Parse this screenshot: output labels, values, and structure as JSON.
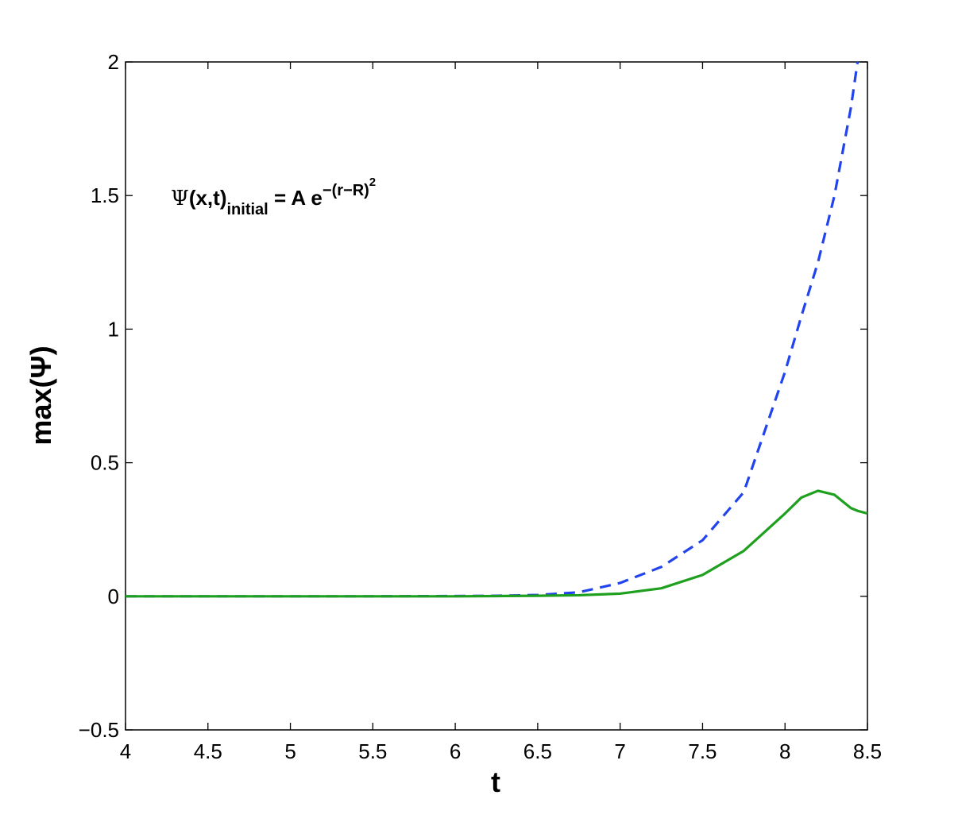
{
  "chart_data": {
    "type": "line",
    "xlabel": "t",
    "ylabel": "max(Ψ)",
    "annotation": {
      "psi": "Ψ",
      "args": "(x,t)",
      "sub": "initial",
      "eq": " = A e",
      "sup": "−(r−R)",
      "sup2": "2"
    },
    "x": [
      4,
      4.5,
      5,
      5.5,
      6,
      6.25,
      6.5,
      6.75,
      7,
      7.25,
      7.5,
      7.75,
      8,
      8.1,
      8.2,
      8.3,
      8.4,
      8.44,
      8.5
    ],
    "series": [
      {
        "color": "#2244ee",
        "dashed": true,
        "values": [
          0,
          0,
          0,
          0,
          0.001,
          0.002,
          0.005,
          0.015,
          0.05,
          0.11,
          0.21,
          0.39,
          0.84,
          1.05,
          1.25,
          1.5,
          1.83,
          2,
          null
        ]
      },
      {
        "color": "#1ea01e",
        "dashed": false,
        "values": [
          0,
          0,
          0,
          0,
          0,
          0.001,
          0.002,
          0.004,
          0.01,
          0.03,
          0.08,
          0.17,
          0.31,
          0.37,
          0.395,
          0.38,
          0.33,
          0.32,
          0.31
        ]
      }
    ],
    "xlim": [
      4,
      8.5
    ],
    "ylim": [
      -0.5,
      2
    ],
    "xticks": [
      4,
      4.5,
      5,
      5.5,
      6,
      6.5,
      7,
      7.5,
      8,
      8.5
    ],
    "yticks": [
      {
        "value": -0.5,
        "label": "−0.5"
      },
      0,
      0.5,
      1,
      1.5,
      2
    ],
    "grid": false
  }
}
